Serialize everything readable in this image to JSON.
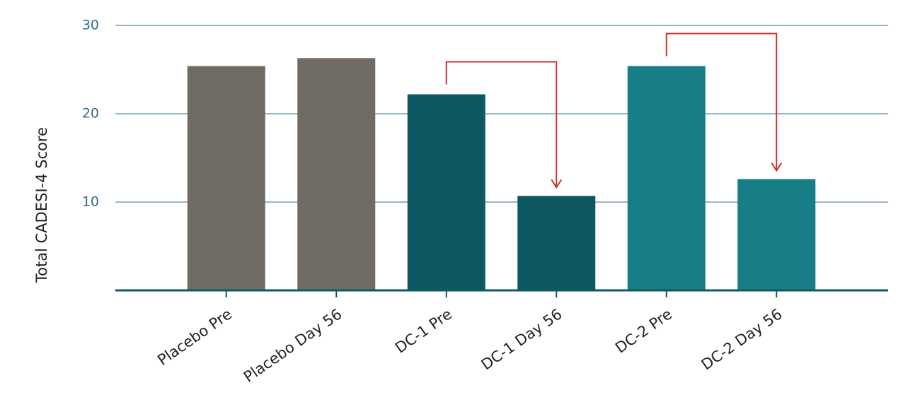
{
  "chart_data": {
    "type": "bar",
    "y_label": "Total CADESI-4 Score",
    "categories": [
      "Placebo Pre",
      "Placebo Day 56",
      "DC-1 Pre",
      "DC-1 Day 56",
      "DC-2 Pre",
      "DC-2 Day 56"
    ],
    "values": [
      25.4,
      26.3,
      22.2,
      10.7,
      25.4,
      12.6
    ],
    "colors": [
      "#716b66",
      "#716b66",
      "#0e5864",
      "#0e5864",
      "#177e88",
      "#177e88"
    ],
    "ylim": [
      0,
      30
    ],
    "yticks": [
      10,
      20,
      30
    ],
    "grid": true
  }
}
